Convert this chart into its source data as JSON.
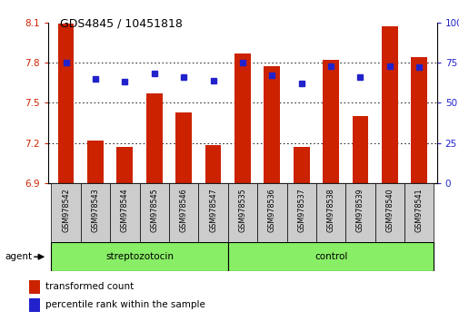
{
  "title": "GDS4845 / 10451818",
  "samples": [
    "GSM978542",
    "GSM978543",
    "GSM978544",
    "GSM978545",
    "GSM978546",
    "GSM978547",
    "GSM978535",
    "GSM978536",
    "GSM978537",
    "GSM978538",
    "GSM978539",
    "GSM978540",
    "GSM978541"
  ],
  "red_values": [
    8.09,
    7.22,
    7.17,
    7.57,
    7.43,
    7.18,
    7.87,
    7.77,
    7.17,
    7.82,
    7.4,
    8.07,
    7.84
  ],
  "blue_percentiles": [
    75,
    65,
    63,
    68,
    66,
    64,
    75,
    67,
    62,
    73,
    66,
    73,
    72
  ],
  "ylim_left": [
    6.9,
    8.1
  ],
  "ylim_right": [
    0,
    100
  ],
  "yticks_left": [
    6.9,
    7.2,
    7.5,
    7.8,
    8.1
  ],
  "yticks_right": [
    0,
    25,
    50,
    75,
    100
  ],
  "group1_label": "streptozotocin",
  "group2_label": "control",
  "group1_count": 6,
  "group2_count": 7,
  "red_color": "#cc2200",
  "blue_color": "#2222cc",
  "bar_width": 0.55,
  "legend_red": "transformed count",
  "legend_blue": "percentile rank within the sample",
  "agent_label": "agent",
  "group_bg_color": "#88ee66",
  "tick_label_bg": "#cccccc",
  "baseline": 6.9,
  "grid_lines": [
    7.2,
    7.5,
    7.8
  ]
}
